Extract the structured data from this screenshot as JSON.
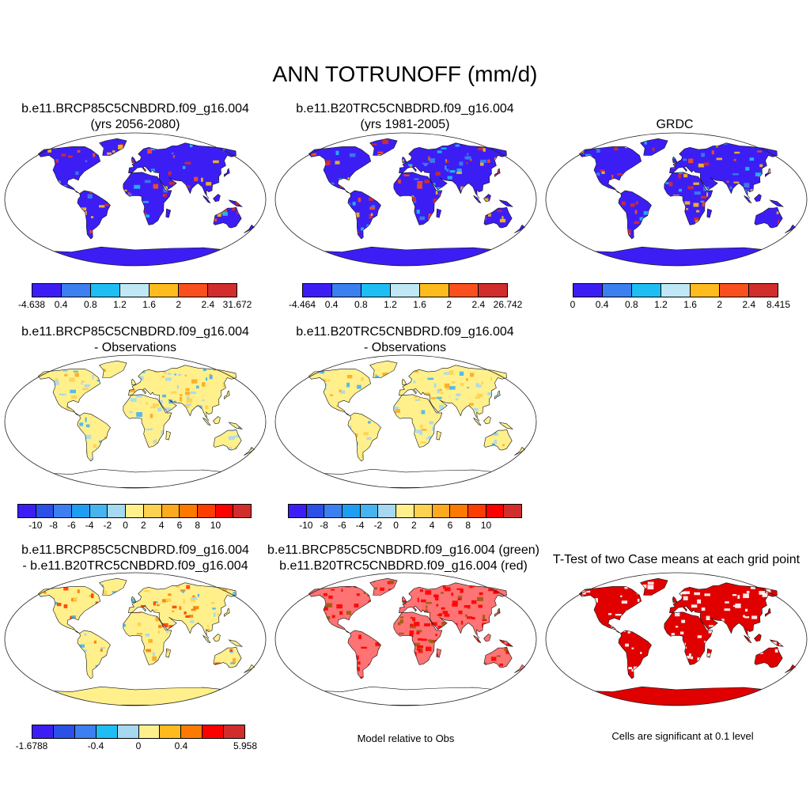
{
  "title": "ANN TOTRUNOFF (mm/d)",
  "panels": [
    {
      "line1": "b.e11.BRCP85C5CNBDRD.f09_g16.004",
      "line2": "(yrs 2056-2080)",
      "style": "abs"
    },
    {
      "line1": "b.e11.B20TRC5CNBDRD.f09_g16.004",
      "line2": "(yrs 1981-2005)",
      "style": "abs"
    },
    {
      "line1": "GRDC",
      "line2": "",
      "style": "abs"
    },
    {
      "line1": "b.e11.BRCP85C5CNBDRD.f09_g16.004",
      "line2": "- Observations",
      "style": "diff"
    },
    {
      "line1": "b.e11.B20TRC5CNBDRD.f09_g16.004",
      "line2": "- Observations",
      "style": "diff"
    },
    {
      "line1": "b.e11.BRCP85C5CNBDRD.f09_g16.004",
      "line2": "- b.e11.B20TRC5CNBDRD.f09_g16.004",
      "style": "diff2"
    },
    {
      "line1": "b.e11.BRCP85C5CNBDRD.f09_g16.004 (green)",
      "line2": "b.e11.B20TRC5CNBDRD.f09_g16.004 (red)",
      "style": "rel"
    },
    {
      "line1": "T-Test of two Case means at each grid point",
      "line2": "",
      "style": "ttest"
    }
  ],
  "colorbars": [
    {
      "colors": [
        "#3c1ef5",
        "#3c7ff0",
        "#1ebef5",
        "#bfe7f5",
        "#fdbb1e",
        "#f9501e",
        "#d22d2d"
      ],
      "labels": [
        "-4.638",
        "0.4",
        "0.8",
        "1.2",
        "1.6",
        "2",
        "2.4",
        "31.672"
      ]
    },
    {
      "colors": [
        "#3c1ef5",
        "#3c7ff0",
        "#1ebef5",
        "#bfe7f5",
        "#fdbb1e",
        "#f9501e",
        "#d22d2d"
      ],
      "labels": [
        "-4.464",
        "0.4",
        "0.8",
        "1.2",
        "1.6",
        "2",
        "2.4",
        "26.742"
      ]
    },
    {
      "colors": [
        "#3c1ef5",
        "#3c7ff0",
        "#1ebef5",
        "#bfe7f5",
        "#fdbb1e",
        "#f9501e",
        "#d22d2d"
      ],
      "labels": [
        "0",
        "0.4",
        "0.8",
        "1.2",
        "1.6",
        "2",
        "2.4",
        "8.415"
      ]
    },
    {
      "colors": [
        "#3c1ef5",
        "#2a50e6",
        "#3c7ff0",
        "#1e9ef0",
        "#46b4ee",
        "#a6d8f0",
        "#fff08c",
        "#fdd250",
        "#fdaa1e",
        "#fd7a00",
        "#fd3c00",
        "#fd0000",
        "#d22d2d"
      ],
      "labels": [
        "-10",
        "-8",
        "-6",
        "-4",
        "-2",
        "0",
        "2",
        "4",
        "6",
        "8",
        "10"
      ]
    },
    {
      "colors": [
        "#3c1ef5",
        "#2a50e6",
        "#3c7ff0",
        "#1e9ef0",
        "#46b4ee",
        "#a6d8f0",
        "#fff08c",
        "#fdd250",
        "#fdaa1e",
        "#fd7a00",
        "#fd3c00",
        "#fd0000",
        "#d22d2d"
      ],
      "labels": [
        "-10",
        "-8",
        "-6",
        "-4",
        "-2",
        "0",
        "2",
        "4",
        "6",
        "8",
        "10"
      ]
    },
    {
      "colors": [
        "#3c1ef5",
        "#2a50e6",
        "#3c7ff0",
        "#1ebef5",
        "#a6d8f0",
        "#fff08c",
        "#fdbb1e",
        "#fd7a00",
        "#fd0000",
        "#d22d2d"
      ],
      "labels": [
        "-1.6788",
        "-0.4",
        "0",
        "0.4",
        "5.958"
      ]
    }
  ],
  "notes": {
    "rel": "Model relative to Obs",
    "ttest": "Cells are significant at 0.1 level"
  }
}
